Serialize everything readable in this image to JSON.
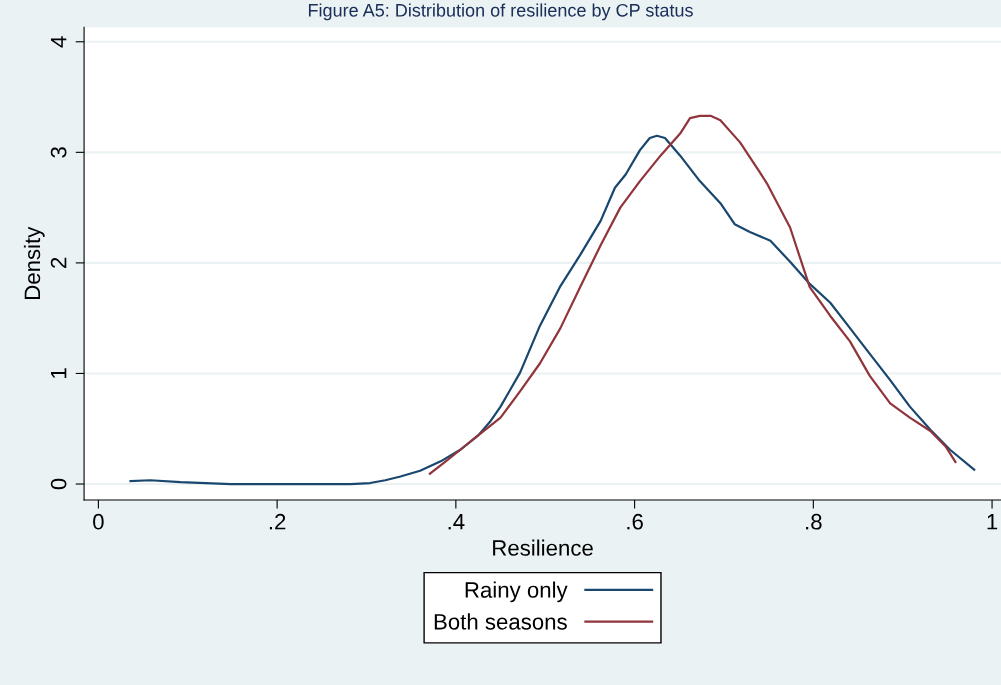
{
  "chart_data": {
    "type": "line",
    "title": "Figure A5: Distribution of resilience by CP status",
    "xlabel": "Resilience",
    "ylabel": "Density",
    "xlim": [
      -0.016,
      1.01
    ],
    "ylim": [
      -0.145,
      4.13
    ],
    "xticks": [
      0,
      {
        "value": 0.2,
        "label": ".2"
      },
      {
        "value": 0.4,
        "label": ".4"
      },
      {
        "value": 0.6,
        "label": ".6"
      },
      {
        "value": 0.8,
        "label": ".8"
      },
      1
    ],
    "yticks": [
      0,
      1,
      2,
      3,
      4
    ],
    "grid": "y",
    "legend": "bottom",
    "marker": "none",
    "line_style": "solid",
    "series": [
      {
        "name": "Rainy only",
        "color": "#1a476f",
        "x": [
          0.036,
          0.058,
          0.092,
          0.148,
          0.204,
          0.282,
          0.304,
          0.321,
          0.338,
          0.36,
          0.383,
          0.405,
          0.425,
          0.438,
          0.45,
          0.472,
          0.494,
          0.517,
          0.539,
          0.562,
          0.578,
          0.59,
          0.606,
          0.617,
          0.625,
          0.634,
          0.651,
          0.673,
          0.696,
          0.712,
          0.729,
          0.752,
          0.774,
          0.796,
          0.819,
          0.841,
          0.863,
          0.886,
          0.908,
          0.931,
          0.953,
          0.98
        ],
        "values": [
          0.026,
          0.034,
          0.017,
          0,
          0,
          0,
          0.009,
          0.034,
          0.068,
          0.12,
          0.205,
          0.31,
          0.44,
          0.56,
          0.7,
          1.01,
          1.43,
          1.79,
          2.07,
          2.38,
          2.68,
          2.8,
          3.02,
          3.13,
          3.15,
          3.13,
          2.97,
          2.74,
          2.54,
          2.35,
          2.28,
          2.2,
          2.01,
          1.81,
          1.64,
          1.41,
          1.18,
          0.94,
          0.7,
          0.49,
          0.31,
          0.13
        ]
      },
      {
        "name": "Both seasons",
        "color": "#90353b",
        "x": [
          0.371,
          0.388,
          0.405,
          0.425,
          0.45,
          0.472,
          0.494,
          0.517,
          0.539,
          0.562,
          0.584,
          0.606,
          0.629,
          0.651,
          0.662,
          0.673,
          0.685,
          0.696,
          0.718,
          0.74,
          0.748,
          0.774,
          0.796,
          0.819,
          0.841,
          0.863,
          0.886,
          0.908,
          0.931,
          0.948,
          0.959
        ],
        "values": [
          0.094,
          0.2,
          0.31,
          0.44,
          0.6,
          0.84,
          1.09,
          1.41,
          1.78,
          2.16,
          2.5,
          2.74,
          2.97,
          3.17,
          3.31,
          3.33,
          3.33,
          3.29,
          3.09,
          2.82,
          2.72,
          2.32,
          1.78,
          1.52,
          1.29,
          0.98,
          0.73,
          0.6,
          0.48,
          0.34,
          0.2
        ]
      }
    ]
  }
}
